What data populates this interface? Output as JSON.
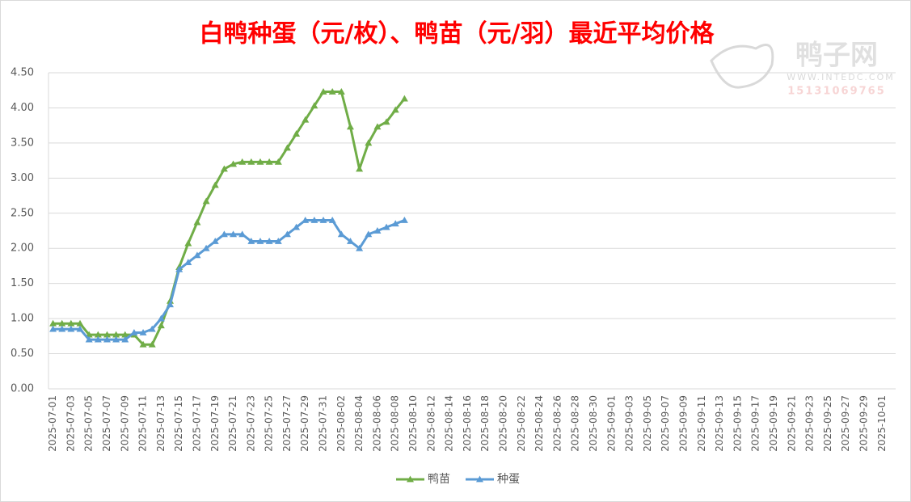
{
  "chart_data": {
    "type": "line",
    "title": "白鸭种蛋（元/枚）、鸭苗（元/羽）最近平均价格",
    "watermark": {
      "name": "鸭子网",
      "url": "WWW.INTEDC.COM",
      "phone": "15131069765"
    },
    "categories": [
      "2025-07-01",
      null,
      "2025-07-03",
      null,
      "2025-07-05",
      null,
      "2025-07-07",
      null,
      "2025-07-09",
      null,
      "2025-07-11",
      null,
      "2025-07-13",
      null,
      "2025-07-15",
      null,
      "2025-07-17",
      null,
      "2025-07-19",
      null,
      "2025-07-21",
      null,
      "2025-07-23",
      null,
      "2025-07-25",
      null,
      "2025-07-27",
      null,
      "2025-07-29",
      null,
      "2025-07-31",
      null,
      "2025-08-02",
      null,
      "2025-08-04",
      null,
      "2025-08-06",
      null,
      "2025-08-08",
      null,
      "2025-08-10",
      null,
      "2025-08-12",
      null,
      "2025-08-14",
      null,
      "2025-08-16",
      null,
      "2025-08-18",
      null,
      "2025-08-20",
      null,
      "2025-08-22",
      null,
      "2025-08-24",
      null,
      "2025-08-26",
      null,
      "2025-08-28",
      null,
      "2025-08-30",
      null,
      "2025-09-01",
      null,
      "2025-09-03",
      null,
      "2025-09-05",
      null,
      "2025-09-07",
      null,
      "2025-09-09",
      null,
      "2025-09-11",
      null,
      "2025-09-13",
      null,
      "2025-09-15",
      null,
      "2025-09-17",
      null,
      "2025-09-19",
      null,
      "2025-09-21",
      null,
      "2025-09-23",
      null,
      "2025-09-25",
      null,
      "2025-09-27",
      null,
      "2025-09-29",
      null,
      "2025-10-01",
      null
    ],
    "series": [
      {
        "name": "鸭苗",
        "color": "#70ad47",
        "values": [
          0.93,
          0.93,
          0.93,
          0.93,
          0.77,
          0.77,
          0.77,
          0.77,
          0.77,
          0.77,
          0.63,
          0.63,
          0.9,
          1.25,
          1.73,
          2.07,
          2.37,
          2.67,
          2.9,
          3.13,
          3.2,
          3.23,
          3.23,
          3.23,
          3.23,
          3.23,
          3.43,
          3.63,
          3.83,
          4.03,
          4.23,
          4.23,
          4.23,
          3.73,
          3.13,
          3.5,
          3.73,
          3.8,
          3.97,
          4.13,
          null,
          null,
          null,
          null,
          null,
          null,
          null,
          null,
          null,
          null,
          null,
          null,
          null,
          null,
          null,
          null,
          null,
          null,
          null,
          null,
          null,
          null,
          null,
          null,
          null,
          null,
          null,
          null,
          null,
          null,
          null,
          null,
          null,
          null,
          null,
          null,
          null,
          null,
          null,
          null,
          null,
          null,
          null,
          null,
          null,
          null,
          null,
          null,
          null,
          null,
          null,
          null,
          null,
          null
        ]
      },
      {
        "name": "种蛋",
        "color": "#5b9bd5",
        "values": [
          0.85,
          0.85,
          0.85,
          0.85,
          0.7,
          0.7,
          0.7,
          0.7,
          0.7,
          0.8,
          0.8,
          0.85,
          1.0,
          1.2,
          1.7,
          1.8,
          1.9,
          2.0,
          2.1,
          2.2,
          2.2,
          2.2,
          2.1,
          2.1,
          2.1,
          2.1,
          2.2,
          2.3,
          2.4,
          2.4,
          2.4,
          2.4,
          2.2,
          2.1,
          2.0,
          2.2,
          2.25,
          2.3,
          2.35,
          2.4,
          null,
          null,
          null,
          null,
          null,
          null,
          null,
          null,
          null,
          null,
          null,
          null,
          null,
          null,
          null,
          null,
          null,
          null,
          null,
          null,
          null,
          null,
          null,
          null,
          null,
          null,
          null,
          null,
          null,
          null,
          null,
          null,
          null,
          null,
          null,
          null,
          null,
          null,
          null,
          null,
          null,
          null,
          null,
          null,
          null,
          null,
          null,
          null,
          null,
          null,
          null,
          null,
          null,
          null
        ]
      }
    ],
    "ylim": [
      0,
      4.5
    ],
    "yticks": [
      {
        "value": 0,
        "label": "0.00"
      },
      {
        "value": 0.5,
        "label": "0.50"
      },
      {
        "value": 1,
        "label": "1.00"
      },
      {
        "value": 1.5,
        "label": "1.50"
      },
      {
        "value": 2,
        "label": "2.00"
      },
      {
        "value": 2.5,
        "label": "2.50"
      },
      {
        "value": 3,
        "label": "3.00"
      },
      {
        "value": 3.5,
        "label": "3.50"
      },
      {
        "value": 4,
        "label": "4.00"
      },
      {
        "value": 4.5,
        "label": "4.50"
      }
    ],
    "grid": true,
    "legend": "bottom",
    "marker": "triangle"
  }
}
